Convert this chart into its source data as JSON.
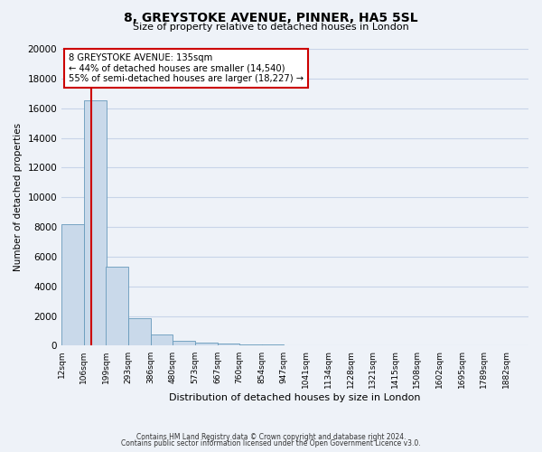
{
  "title": "8, GREYSTOKE AVENUE, PINNER, HA5 5SL",
  "subtitle": "Size of property relative to detached houses in London",
  "xlabel": "Distribution of detached houses by size in London",
  "ylabel": "Number of detached properties",
  "bin_labels": [
    "12sqm",
    "106sqm",
    "199sqm",
    "293sqm",
    "386sqm",
    "480sqm",
    "573sqm",
    "667sqm",
    "760sqm",
    "854sqm",
    "947sqm",
    "1041sqm",
    "1134sqm",
    "1228sqm",
    "1321sqm",
    "1415sqm",
    "1508sqm",
    "1602sqm",
    "1695sqm",
    "1789sqm",
    "1882sqm"
  ],
  "bin_edges": [
    12,
    106,
    199,
    293,
    386,
    480,
    573,
    667,
    760,
    854,
    947,
    1041,
    1134,
    1228,
    1321,
    1415,
    1508,
    1602,
    1695,
    1789,
    1882
  ],
  "bar_heights": [
    8200,
    16500,
    5300,
    1850,
    750,
    310,
    230,
    130,
    100,
    70,
    40,
    30,
    20,
    15,
    10,
    8,
    6,
    5,
    4,
    3
  ],
  "bar_color": "#c9d9ea",
  "bar_edge_color": "#6699bb",
  "property_size": 135,
  "vline_color": "#cc0000",
  "annotation_title": "8 GREYSTOKE AVENUE: 135sqm",
  "annotation_line1": "← 44% of detached houses are smaller (14,540)",
  "annotation_line2": "55% of semi-detached houses are larger (18,227) →",
  "annotation_box_color": "#ffffff",
  "annotation_box_edge_color": "#cc0000",
  "ylim": [
    0,
    20000
  ],
  "yticks": [
    0,
    2000,
    4000,
    6000,
    8000,
    10000,
    12000,
    14000,
    16000,
    18000,
    20000
  ],
  "grid_color": "#c8d4e8",
  "footer1": "Contains HM Land Registry data © Crown copyright and database right 2024.",
  "footer2": "Contains public sector information licensed under the Open Government Licence v3.0.",
  "bg_color": "#eef2f8"
}
